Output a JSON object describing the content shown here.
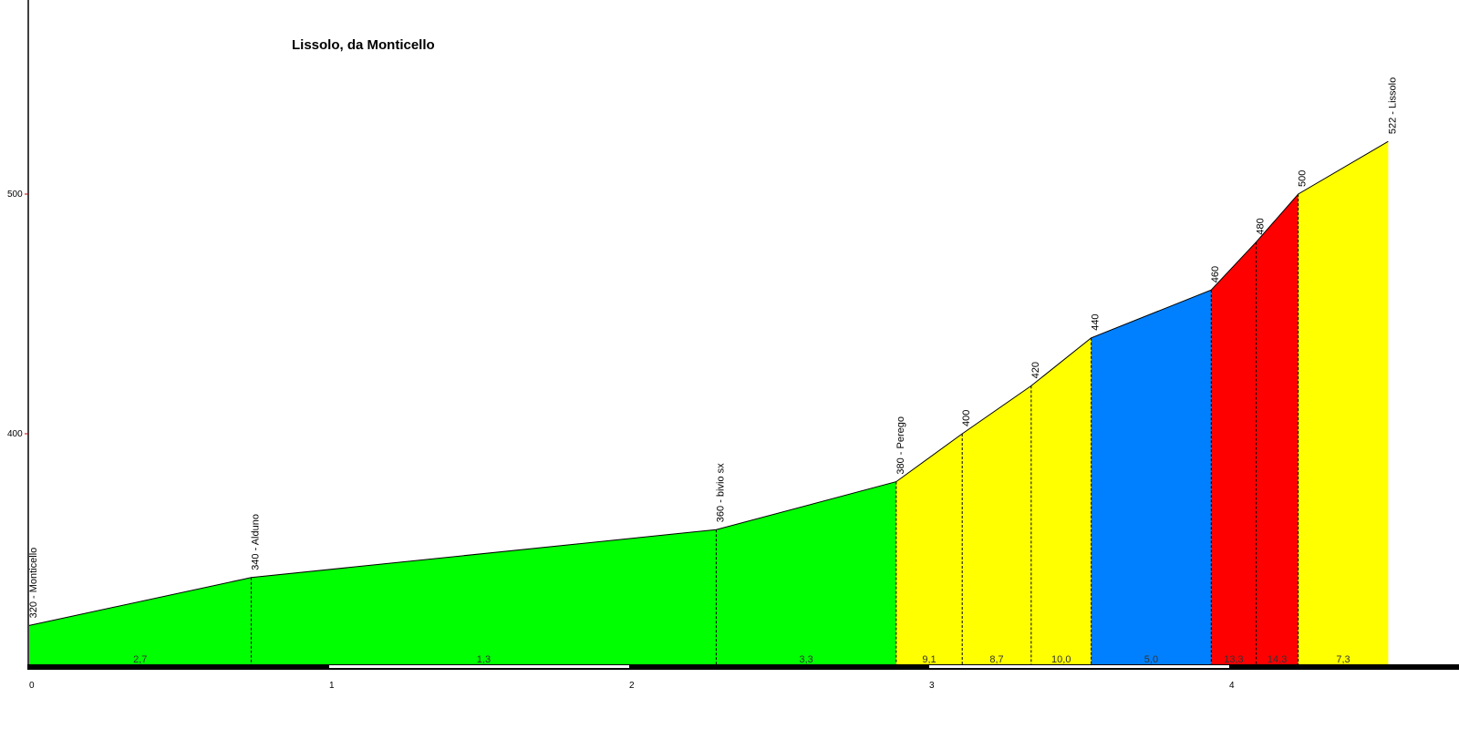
{
  "chart_data": {
    "type": "area",
    "title": "Lissolo, da Monticello",
    "xlabel": "",
    "ylabel": "",
    "xlim": [
      0,
      4.75
    ],
    "ylim": [
      304,
      584
    ],
    "y_ticks": [
      {
        "value": 400,
        "label": "400"
      },
      {
        "value": 500,
        "label": "500"
      }
    ],
    "x_ticks": [
      {
        "value": 0,
        "label": "0"
      },
      {
        "value": 1,
        "label": "1"
      },
      {
        "value": 2,
        "label": "2"
      },
      {
        "value": 3,
        "label": "3"
      },
      {
        "value": 4,
        "label": "4"
      }
    ],
    "waypoints": [
      {
        "x": 0.0,
        "y": 320,
        "label": "320 - Monticello"
      },
      {
        "x": 0.74,
        "y": 340,
        "label": "340 - Alduno"
      },
      {
        "x": 2.29,
        "y": 360,
        "label": "360 - bivio  sx"
      },
      {
        "x": 2.89,
        "y": 380,
        "label": "380 - Perego"
      },
      {
        "x": 3.11,
        "y": 400,
        "label": "400"
      },
      {
        "x": 3.34,
        "y": 420,
        "label": "420"
      },
      {
        "x": 3.54,
        "y": 440,
        "label": "440"
      },
      {
        "x": 3.94,
        "y": 460,
        "label": "460"
      },
      {
        "x": 4.09,
        "y": 480,
        "label": "480"
      },
      {
        "x": 4.23,
        "y": 500,
        "label": "500"
      },
      {
        "x": 4.53,
        "y": 522,
        "label": "522 - Lissolo"
      }
    ],
    "segments": [
      {
        "gradient": "2,7",
        "color": "#00ff00"
      },
      {
        "gradient": "1,3",
        "color": "#00ff00"
      },
      {
        "gradient": "3,3",
        "color": "#00ff00"
      },
      {
        "gradient": "9,1",
        "color": "#ffff00"
      },
      {
        "gradient": "8,7",
        "color": "#ffff00"
      },
      {
        "gradient": "10,0",
        "color": "#ffff00"
      },
      {
        "gradient": "5,0",
        "color": "#0080ff"
      },
      {
        "gradient": "13,3",
        "color": "#ff0000"
      },
      {
        "gradient": "14,3",
        "color": "#ff0000"
      },
      {
        "gradient": "7,3",
        "color": "#ffff00"
      }
    ],
    "grid": false
  }
}
